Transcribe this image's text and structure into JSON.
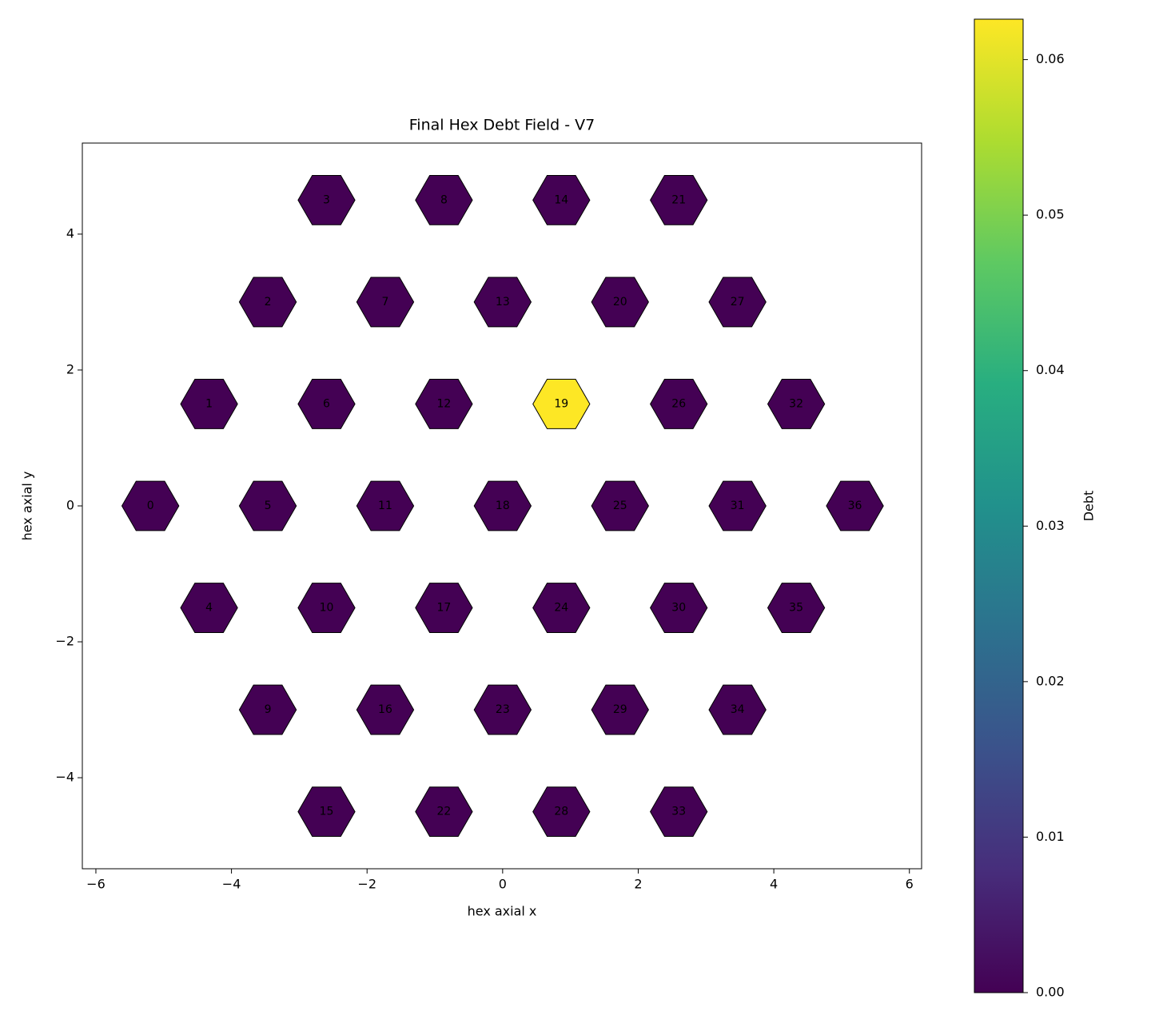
{
  "chart_data": {
    "type": "hexmap",
    "title": "Final Hex Debt Field - V7",
    "x_label": "hex axial x",
    "y_label": "hex axial y",
    "labels": [
      0,
      1,
      2,
      3,
      4,
      5,
      6,
      7,
      8,
      9,
      10,
      11,
      12,
      13,
      14,
      15,
      16,
      17,
      18,
      19,
      20,
      21,
      22,
      23,
      24,
      25,
      26,
      27,
      28,
      29,
      30,
      31,
      32,
      33,
      34,
      35,
      36
    ],
    "x": [
      -5.196,
      -4.33,
      -3.464,
      -2.598,
      -4.33,
      -3.464,
      -2.598,
      -1.732,
      -0.866,
      -3.464,
      -2.598,
      -1.732,
      -0.866,
      0,
      0.866,
      -2.598,
      -1.732,
      -0.866,
      0,
      0.866,
      1.732,
      2.598,
      -0.866,
      0,
      0.866,
      1.732,
      2.598,
      3.464,
      0.866,
      1.732,
      2.598,
      3.464,
      4.33,
      2.598,
      3.464,
      4.33,
      5.196
    ],
    "y": [
      0,
      1.5,
      3,
      4.5,
      -1.5,
      0,
      1.5,
      3,
      4.5,
      -3,
      -1.5,
      0,
      1.5,
      3,
      4.5,
      -4.5,
      -3,
      -1.5,
      0,
      1.5,
      3,
      4.5,
      -4.5,
      -3,
      -1.5,
      0,
      1.5,
      3,
      -4.5,
      -3,
      -1.5,
      0,
      1.5,
      -4.5,
      -3,
      -1.5,
      0
    ],
    "values": [
      0,
      0,
      0,
      0,
      0,
      0,
      0,
      0,
      0,
      0,
      0,
      0,
      0,
      0,
      0,
      0,
      0,
      0,
      0,
      0.0626,
      0,
      0,
      0,
      0,
      0,
      0,
      0,
      0,
      0,
      0,
      0,
      0,
      0,
      0,
      0,
      0,
      0
    ],
    "colormap": "viridis",
    "edge_color": "#000000",
    "xlim": [
      -6.2,
      6.18
    ],
    "ylim": [
      -5.34,
      5.34
    ],
    "xticks": [
      {
        "value": -6,
        "label": "−6"
      },
      {
        "value": -4,
        "label": "−4"
      },
      {
        "value": -2,
        "label": "−2"
      },
      0,
      2,
      4,
      6
    ],
    "yticks": [
      {
        "value": -4,
        "label": "−4"
      },
      {
        "value": -2,
        "label": "−2"
      },
      0,
      2,
      4
    ],
    "colorbar": {
      "label": "Debt",
      "lim": [
        0,
        0.0626
      ],
      "ticks": [
        {
          "value": 0,
          "label": "0.00"
        },
        {
          "value": 0.01,
          "label": "0.01"
        },
        {
          "value": 0.02,
          "label": "0.02"
        },
        {
          "value": 0.03,
          "label": "0.03"
        },
        {
          "value": 0.04,
          "label": "0.04"
        },
        {
          "value": 0.05,
          "label": "0.05"
        },
        {
          "value": 0.06,
          "label": "0.06"
        }
      ]
    }
  }
}
